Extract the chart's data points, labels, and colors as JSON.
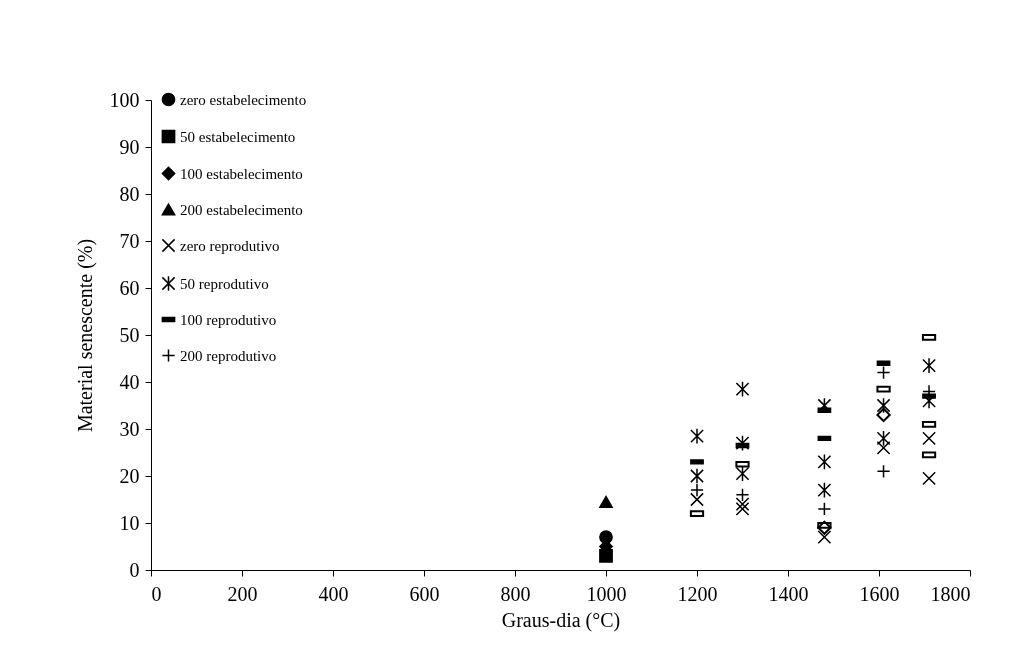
{
  "chart_data": {
    "type": "scatter",
    "xlabel": "Graus-dia (°C)",
    "ylabel": "Material senescente (%)",
    "xlim": [
      0,
      1800
    ],
    "xticks": [
      0,
      200,
      400,
      600,
      800,
      1000,
      1200,
      1400,
      1600,
      1800
    ],
    "ylim": [
      0,
      100
    ],
    "yticks": [
      0,
      10,
      20,
      30,
      40,
      50,
      60,
      70,
      80,
      90,
      100
    ],
    "legend": "top left",
    "series": [
      {
        "name": "zero estabelecimento",
        "color": "#000000",
        "marker": "circle",
        "x": [
          1000
        ],
        "values": [
          7
        ]
      },
      {
        "name": "50 estabelecimento",
        "color": "#000000",
        "marker": "square",
        "x": [
          1000
        ],
        "values": [
          3
        ]
      },
      {
        "name": "100 estabelecimento",
        "color": "#000000",
        "marker": "diamond",
        "x": [
          1000
        ],
        "values": [
          5
        ]
      },
      {
        "name": "200 estabelecimento",
        "color": "#000000",
        "marker": "triangle",
        "x": [
          1000
        ],
        "values": [
          14.5
        ]
      },
      {
        "name": "zero reprodutivo",
        "color": "#000000",
        "marker": "cross",
        "x": [
          1200,
          1300,
          1300,
          1480,
          1610,
          1710,
          1710
        ],
        "values": [
          15,
          13,
          14,
          7,
          26,
          19.5,
          28
        ]
      },
      {
        "name": "50 reprodutivo",
        "color": "#000000",
        "x": [
          1200,
          1200,
          1300,
          1300,
          1300,
          1480,
          1480,
          1480,
          1610,
          1610,
          1710,
          1710
        ],
        "values": [
          28.5,
          20,
          38.5,
          27,
          20.5,
          35,
          23,
          17,
          35,
          28,
          43.5,
          36
        ]
      },
      {
        "name": "100 reprodutivo",
        "color": "#000000",
        "x": [
          1200,
          1300,
          1480,
          1480,
          1610,
          1710
        ],
        "values": [
          23,
          26.5,
          34,
          28,
          44,
          37
        ]
      },
      {
        "name": "200 reprodutivo",
        "color": "#000000",
        "x": [
          1200,
          1300,
          1480,
          1610,
          1610,
          1710
        ],
        "values": [
          17,
          16,
          13,
          21,
          42,
          38
        ]
      },
      {
        "color": "#000000",
        "x": [
          1200,
          1300,
          1480,
          1610,
          1710,
          1710,
          1710
        ],
        "values": [
          12,
          22.5,
          9.5,
          38.5,
          49.5,
          31,
          24.5
        ]
      },
      {
        "color": "#000000",
        "marker": "diamond",
        "x": [
          1480,
          1610
        ],
        "values": [
          9,
          33
        ]
      }
    ]
  }
}
